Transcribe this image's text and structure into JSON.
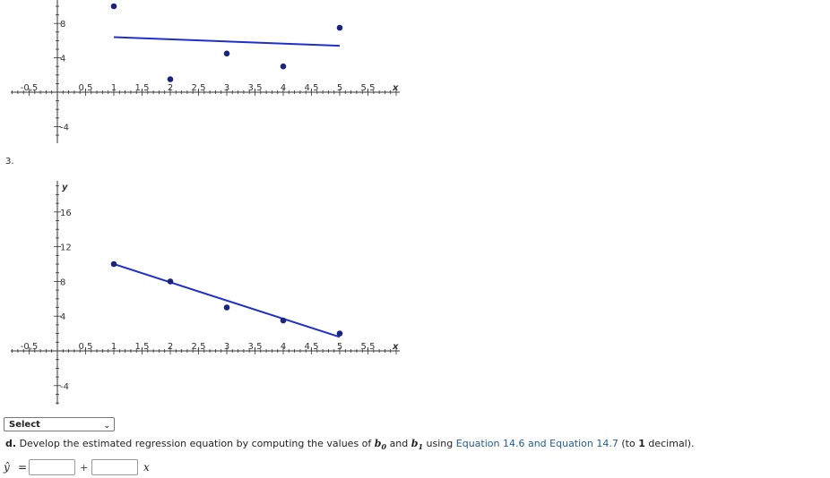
{
  "chart_data": [
    {
      "type": "scatter",
      "xlabel": "x",
      "ylabel": "",
      "x_ticks": [
        "-0.5",
        "0.5",
        "1",
        "1.5",
        "2",
        "2.5",
        "3",
        "3.5",
        "4",
        "4.5",
        "5",
        "5.5"
      ],
      "y_ticks": [
        "8",
        "4",
        "-4"
      ],
      "points": [
        {
          "x": 1,
          "y": 10
        },
        {
          "x": 2,
          "y": 1.5
        },
        {
          "x": 3,
          "y": 4.5
        },
        {
          "x": 4,
          "y": 3
        },
        {
          "x": 5,
          "y": 7.5
        }
      ],
      "line": {
        "x": [
          1,
          5
        ],
        "y": [
          6.4,
          5.4
        ]
      },
      "grid": false
    },
    {
      "type": "scatter",
      "xlabel": "x",
      "ylabel": "y",
      "x_ticks": [
        "-0.5",
        "0.5",
        "1",
        "1.5",
        "2",
        "2.5",
        "3",
        "3.5",
        "4",
        "4.5",
        "5",
        "5.5"
      ],
      "y_ticks": [
        "16",
        "12",
        "8",
        "4",
        "-4"
      ],
      "points": [
        {
          "x": 1,
          "y": 10
        },
        {
          "x": 2,
          "y": 8
        },
        {
          "x": 3,
          "y": 5
        },
        {
          "x": 4,
          "y": 3.5
        },
        {
          "x": 5,
          "y": 2
        }
      ],
      "line": {
        "x": [
          1,
          5
        ],
        "y": [
          10,
          1.6
        ]
      },
      "grid": false
    }
  ],
  "question": {
    "number": "3.",
    "select_label": "Select",
    "part_label": "d.",
    "text_before": "Develop the estimated regression equation by computing the values of",
    "b0": "b",
    "b0_sub": "0",
    "and": "and",
    "b1": "b",
    "b1_sub": "1",
    "using": "using",
    "link_text": "Equation 14.6 and Equation 14.7",
    "text_after": "(to",
    "decimals": "1",
    "text_end": "decimal).",
    "yhat": "ŷ",
    "equals": "=",
    "plus": "+",
    "xvar": "x",
    "intercept_value": "",
    "slope_value": ""
  },
  "colors": {
    "point": "#1a237e",
    "line": "#1f2fcc",
    "axis": "#333333",
    "link": "#1f5c99"
  }
}
